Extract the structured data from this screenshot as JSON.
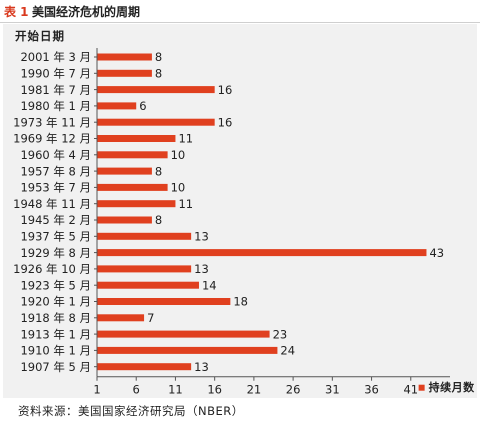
{
  "header": {
    "number": "表 1",
    "title": "美国经济危机的周期"
  },
  "chart_data": {
    "type": "bar",
    "orientation": "horizontal",
    "category_header": "开始日期",
    "categories": [
      "2001 年 3 月",
      "1990 年 7 月",
      "1981 年 7 月",
      "1980 年 1 月",
      "1973 年 11 月",
      "1969 年 12 月",
      "1960 年 4 月",
      "1957 年 8 月",
      "1953 年 7 月",
      "1948 年 11 月",
      "1945 年 2 月",
      "1937 年 5 月",
      "1929 年 8 月",
      "1926 年 10 月",
      "1923 年 5 月",
      "1920 年 1 月",
      "1918 年 8 月",
      "1913 年 1 月",
      "1910 年 1 月",
      "1907 年 5 月"
    ],
    "series": [
      {
        "name": "持续月数",
        "color": "#e0401f",
        "values": [
          8,
          8,
          16,
          6,
          16,
          11,
          10,
          8,
          10,
          11,
          8,
          13,
          43,
          13,
          14,
          18,
          7,
          23,
          24,
          13
        ]
      }
    ],
    "x_ticks": [
      1,
      6,
      11,
      16,
      21,
      26,
      31,
      36,
      41
    ],
    "xlim": [
      1,
      46
    ],
    "legend_position": "bottom-right",
    "grid": false
  },
  "footer": {
    "source": "资料来源：美国国家经济研究局（NBER）"
  }
}
